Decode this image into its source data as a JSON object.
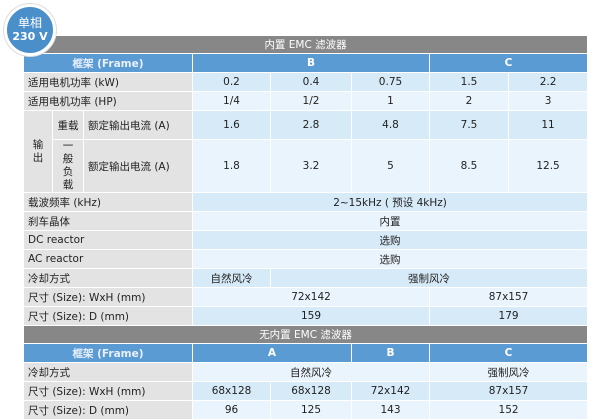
{
  "badge": {
    "line1": "单相",
    "line2": "230 V"
  },
  "colors": {
    "header_gray": "#878787",
    "frame_blue": "#5b9bd4",
    "badge_blue": "#4b8fca",
    "label_gray": "#e3e3e3",
    "cell_blue": "#d7eaf8",
    "cell_light": "#eaf4fc"
  },
  "builtin": {
    "title": "内置 EMC 滤波器",
    "frame_label": "框架 (Frame)",
    "frames": [
      "B",
      "C"
    ],
    "kw_label": "适用电机功率 (kW)",
    "kw": [
      "0.2",
      "0.4",
      "0.75",
      "1.5",
      "2.2"
    ],
    "hp_label": "适用电机功率 (HP)",
    "hp": [
      "1/4",
      "1/2",
      "1",
      "2",
      "3"
    ],
    "output_label": "输出",
    "heavy_label": "重载",
    "heavy_current_label": "额定输出电流 (A)",
    "heavy": [
      "1.6",
      "2.8",
      "4.8",
      "7.5",
      "11"
    ],
    "normal_label": "一般负载",
    "normal_current_label": "额定输出电流 (A)",
    "normal": [
      "1.8",
      "3.2",
      "5",
      "8.5",
      "12.5"
    ],
    "carrier_label": "载波频率 (kHz)",
    "carrier": "2~15kHz ( 预设 4kHz)",
    "brake_label": "刹车晶体",
    "brake": "内置",
    "dc_label": "DC reactor",
    "dc": "选购",
    "ac_label": "AC reactor",
    "ac": "选购",
    "cooling_label": "冷却方式",
    "cooling": [
      "自然风冷",
      "强制风冷"
    ],
    "wxh_label": "尺寸 (Size): WxH (mm)",
    "wxh": [
      "72x142",
      "87x157"
    ],
    "d_label": "尺寸 (Size): D (mm)",
    "d": [
      "159",
      "179"
    ]
  },
  "no_filter": {
    "title": "无内置 EMC 滤波器",
    "frame_label": "框架 (Frame)",
    "frames": [
      "A",
      "B",
      "C"
    ],
    "cooling_label": "冷却方式",
    "cooling": [
      "自然风冷",
      "强制风冷"
    ],
    "wxh_label": "尺寸 (Size): WxH (mm)",
    "wxh": [
      "68x128",
      "68x128",
      "72x142",
      "87x157"
    ],
    "d_label": "尺寸 (Size): D (mm)",
    "d": [
      "96",
      "125",
      "143",
      "152"
    ]
  }
}
